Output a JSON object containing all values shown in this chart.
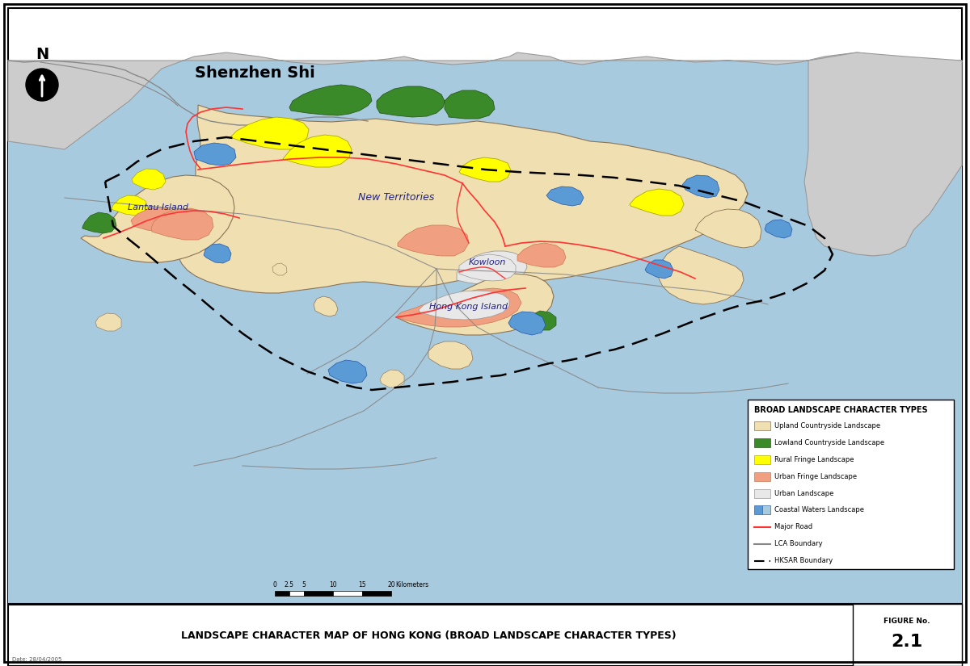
{
  "title": "LANDSCAPE CHARACTER MAP OF HONG KONG (BROAD LANDSCAPE CHARACTER TYPES)",
  "figure_label": "FIGURE No.",
  "figure_number": "2.1",
  "shenzhen_label": "Shenzhen Shi",
  "map_label_new_territories": "New Territories",
  "map_label_kowloon": "Kowloon",
  "map_label_hong_kong_island": "Hong Kong Island",
  "map_label_lantau": "Lantau Island",
  "legend_title": "BROAD LANDSCAPE CHARACTER TYPES",
  "legend_items": [
    {
      "label": "Upland Countryside Landscape",
      "color": "#F0DFB0",
      "type": "patch",
      "edgecolor": "#8B7355"
    },
    {
      "label": "Lowland Countryside Landscape",
      "color": "#3A8A2A",
      "type": "patch",
      "edgecolor": "#2A5A1C"
    },
    {
      "label": "Rural Fringe Landscape",
      "color": "#FFFF00",
      "type": "patch",
      "edgecolor": "#AAAA00"
    },
    {
      "label": "Urban Fringe Landscape",
      "color": "#F0A080",
      "type": "patch",
      "edgecolor": "#CC7755"
    },
    {
      "label": "Urban Landscape",
      "color": "#E8E8E8",
      "type": "patch",
      "edgecolor": "#999999"
    },
    {
      "label": "Coastal Waters Landscape",
      "color": "#5B9BD5",
      "type": "patch_split",
      "edgecolor": "#3366AA"
    },
    {
      "label": "Major Road",
      "color": "#FF3333",
      "type": "line"
    },
    {
      "label": "LCA Boundary",
      "color": "#888888",
      "type": "line"
    },
    {
      "label": "HKSAR Boundary",
      "color": "#000000",
      "type": "dashline"
    }
  ],
  "sea_color": "#A8CADF",
  "land_upland_color": "#F0DFB0",
  "land_lowland_color": "#3A8A2A",
  "rural_fringe_color": "#FFFF00",
  "urban_fringe_color": "#F0A080",
  "urban_color": "#E8E8E8",
  "coastal_water_color": "#5B9BD5",
  "shenzhen_bg": "#D8D8D8",
  "background_color": "#FFFFFF",
  "date_text": "Date: 28/04/2005",
  "scale_bar_ticks": [
    "0",
    "2.5",
    "5",
    "10",
    "15",
    "20"
  ],
  "scale_bar_km_label": "Kilometers"
}
